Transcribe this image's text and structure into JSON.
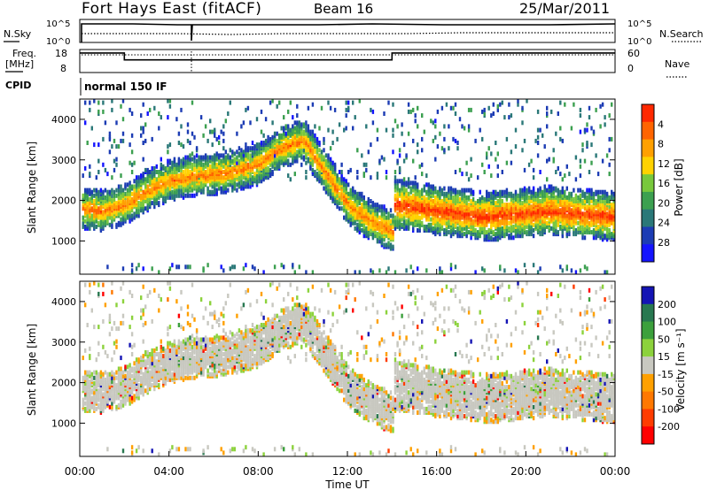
{
  "header": {
    "title": "Fort Hays East (fitACF)",
    "beam": "Beam 16",
    "date": "25/Mar/2011"
  },
  "noise_panel": {
    "left_label": "N.Sky",
    "right_label": "N.Search",
    "tick_top": "10^5",
    "tick_bottom": "10^0"
  },
  "freq_panel": {
    "left_label_1": "Freq.",
    "left_label_2": "[MHz]",
    "right_label": "Nave",
    "left_ticks": [
      "18",
      "8"
    ],
    "right_ticks": [
      "60",
      "0"
    ],
    "freq_series": [
      [
        0,
        16.5
      ],
      [
        2,
        16.5
      ],
      [
        2,
        13.5
      ],
      [
        14,
        13.5
      ],
      [
        14,
        16.5
      ],
      [
        24,
        16.5
      ]
    ]
  },
  "cpid": {
    "label": "CPID",
    "value": "normal 150 IF"
  },
  "chart_data": [
    {
      "type": "heatmap",
      "name": "power",
      "ylabel": "Slant Range [km]",
      "xlabel": "Time UT",
      "xlim": [
        0,
        24
      ],
      "ylim": [
        180,
        4500
      ],
      "x_ticks": [
        "00:00",
        "04:00",
        "08:00",
        "12:00",
        "16:00",
        "20:00",
        "00:00"
      ],
      "y_ticks": [
        "1000",
        "2000",
        "3000",
        "4000"
      ],
      "colorbar": {
        "label": "Power [dB]",
        "ticks": [
          "4",
          "8",
          "12",
          "16",
          "20",
          "24",
          "28"
        ],
        "colors": [
          "#1414ff",
          "#1c3cb4",
          "#2a7878",
          "#3ca050",
          "#78c83c",
          "#ffd200",
          "#ffa000",
          "#ff6400",
          "#ff2800"
        ]
      },
      "echo_bands": [
        {
          "t": [
            0,
            1,
            2,
            3,
            4,
            5,
            6,
            7,
            8,
            9,
            10,
            11,
            12,
            13,
            14
          ],
          "center": [
            1800,
            1750,
            1900,
            2250,
            2500,
            2600,
            2650,
            2750,
            2900,
            3300,
            3500,
            2700,
            1900,
            1500,
            1250
          ],
          "width": 500,
          "peak_power": 26
        },
        {
          "t": [
            14,
            15,
            16,
            17,
            18,
            19,
            20,
            21,
            22,
            23,
            24
          ],
          "center": [
            1900,
            1850,
            1750,
            1700,
            1600,
            1650,
            1700,
            1750,
            1700,
            1650,
            1600
          ],
          "width": 600,
          "peak_power": 30
        }
      ]
    },
    {
      "type": "heatmap",
      "name": "velocity",
      "ylabel": "Slant Range [km]",
      "xlabel": "Time UT",
      "xlim": [
        0,
        24
      ],
      "ylim": [
        180,
        4500
      ],
      "x_ticks": [
        "00:00",
        "04:00",
        "08:00",
        "12:00",
        "16:00",
        "20:00",
        "00:00"
      ],
      "y_ticks": [
        "1000",
        "2000",
        "3000",
        "4000"
      ],
      "colorbar": {
        "label": "Velocity [m s⁻¹]",
        "ticks": [
          "200",
          "100",
          "50",
          "15",
          "-15",
          "-50",
          "-100",
          "-200"
        ],
        "colors": [
          "#1414b4",
          "#287850",
          "#3ca03c",
          "#8cd23c",
          "#c8c8c0",
          "#ffa000",
          "#ff7800",
          "#ff3c00",
          "#ff0000"
        ]
      }
    }
  ]
}
